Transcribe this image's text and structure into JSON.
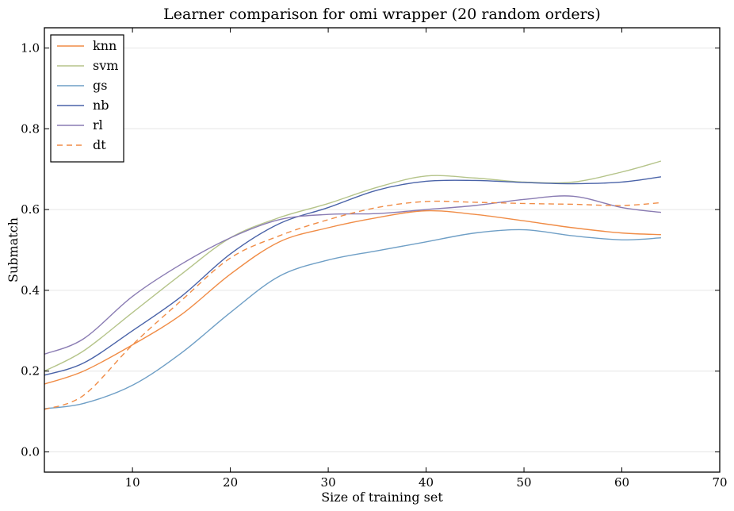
{
  "chart_data": {
    "type": "line",
    "title": "Learner comparison for omi wrapper (20 random orders)",
    "xlabel": "Size of training set",
    "ylabel": "Submatch",
    "xlim": [
      1,
      70
    ],
    "ylim": [
      -0.05,
      1.05
    ],
    "xticks": [
      10,
      20,
      30,
      40,
      50,
      60,
      70
    ],
    "yticks": [
      0.0,
      0.2,
      0.4,
      0.6,
      0.8,
      1.0
    ],
    "xtick_labels": [
      "10",
      "20",
      "30",
      "40",
      "50",
      "60",
      "70"
    ],
    "ytick_labels": [
      "0.0",
      "0.2",
      "0.4",
      "0.6",
      "0.8",
      "1.0"
    ],
    "grid": "horizontal",
    "legend_position": "top-left",
    "x": [
      1,
      5,
      10,
      15,
      20,
      25,
      30,
      35,
      40,
      45,
      50,
      55,
      60,
      64
    ],
    "series": [
      {
        "name": "knn",
        "color": "#f08c46",
        "dash": "solid",
        "values": [
          0.168,
          0.2,
          0.265,
          0.34,
          0.44,
          0.52,
          0.555,
          0.58,
          0.597,
          0.588,
          0.572,
          0.555,
          0.542,
          0.538
        ]
      },
      {
        "name": "svm",
        "color": "#b5c48a",
        "dash": "solid",
        "values": [
          0.2,
          0.25,
          0.345,
          0.44,
          0.53,
          0.58,
          0.615,
          0.655,
          0.683,
          0.678,
          0.668,
          0.668,
          0.693,
          0.72
        ]
      },
      {
        "name": "gs",
        "color": "#6f9fc6",
        "dash": "solid",
        "values": [
          0.107,
          0.12,
          0.165,
          0.245,
          0.345,
          0.435,
          0.475,
          0.498,
          0.52,
          0.542,
          0.55,
          0.535,
          0.525,
          0.53
        ]
      },
      {
        "name": "nb",
        "color": "#4a63a8",
        "dash": "solid",
        "values": [
          0.19,
          0.22,
          0.3,
          0.385,
          0.49,
          0.565,
          0.605,
          0.648,
          0.67,
          0.672,
          0.667,
          0.664,
          0.668,
          0.681
        ]
      },
      {
        "name": "rl",
        "color": "#8a7cb3",
        "dash": "solid",
        "values": [
          0.242,
          0.28,
          0.385,
          0.465,
          0.53,
          0.575,
          0.588,
          0.59,
          0.6,
          0.61,
          0.625,
          0.633,
          0.605,
          0.593
        ]
      },
      {
        "name": "dt",
        "color": "#f08c46",
        "dash": "dashed",
        "values": [
          0.105,
          0.14,
          0.265,
          0.375,
          0.48,
          0.535,
          0.575,
          0.605,
          0.62,
          0.618,
          0.615,
          0.613,
          0.61,
          0.617
        ]
      }
    ]
  }
}
